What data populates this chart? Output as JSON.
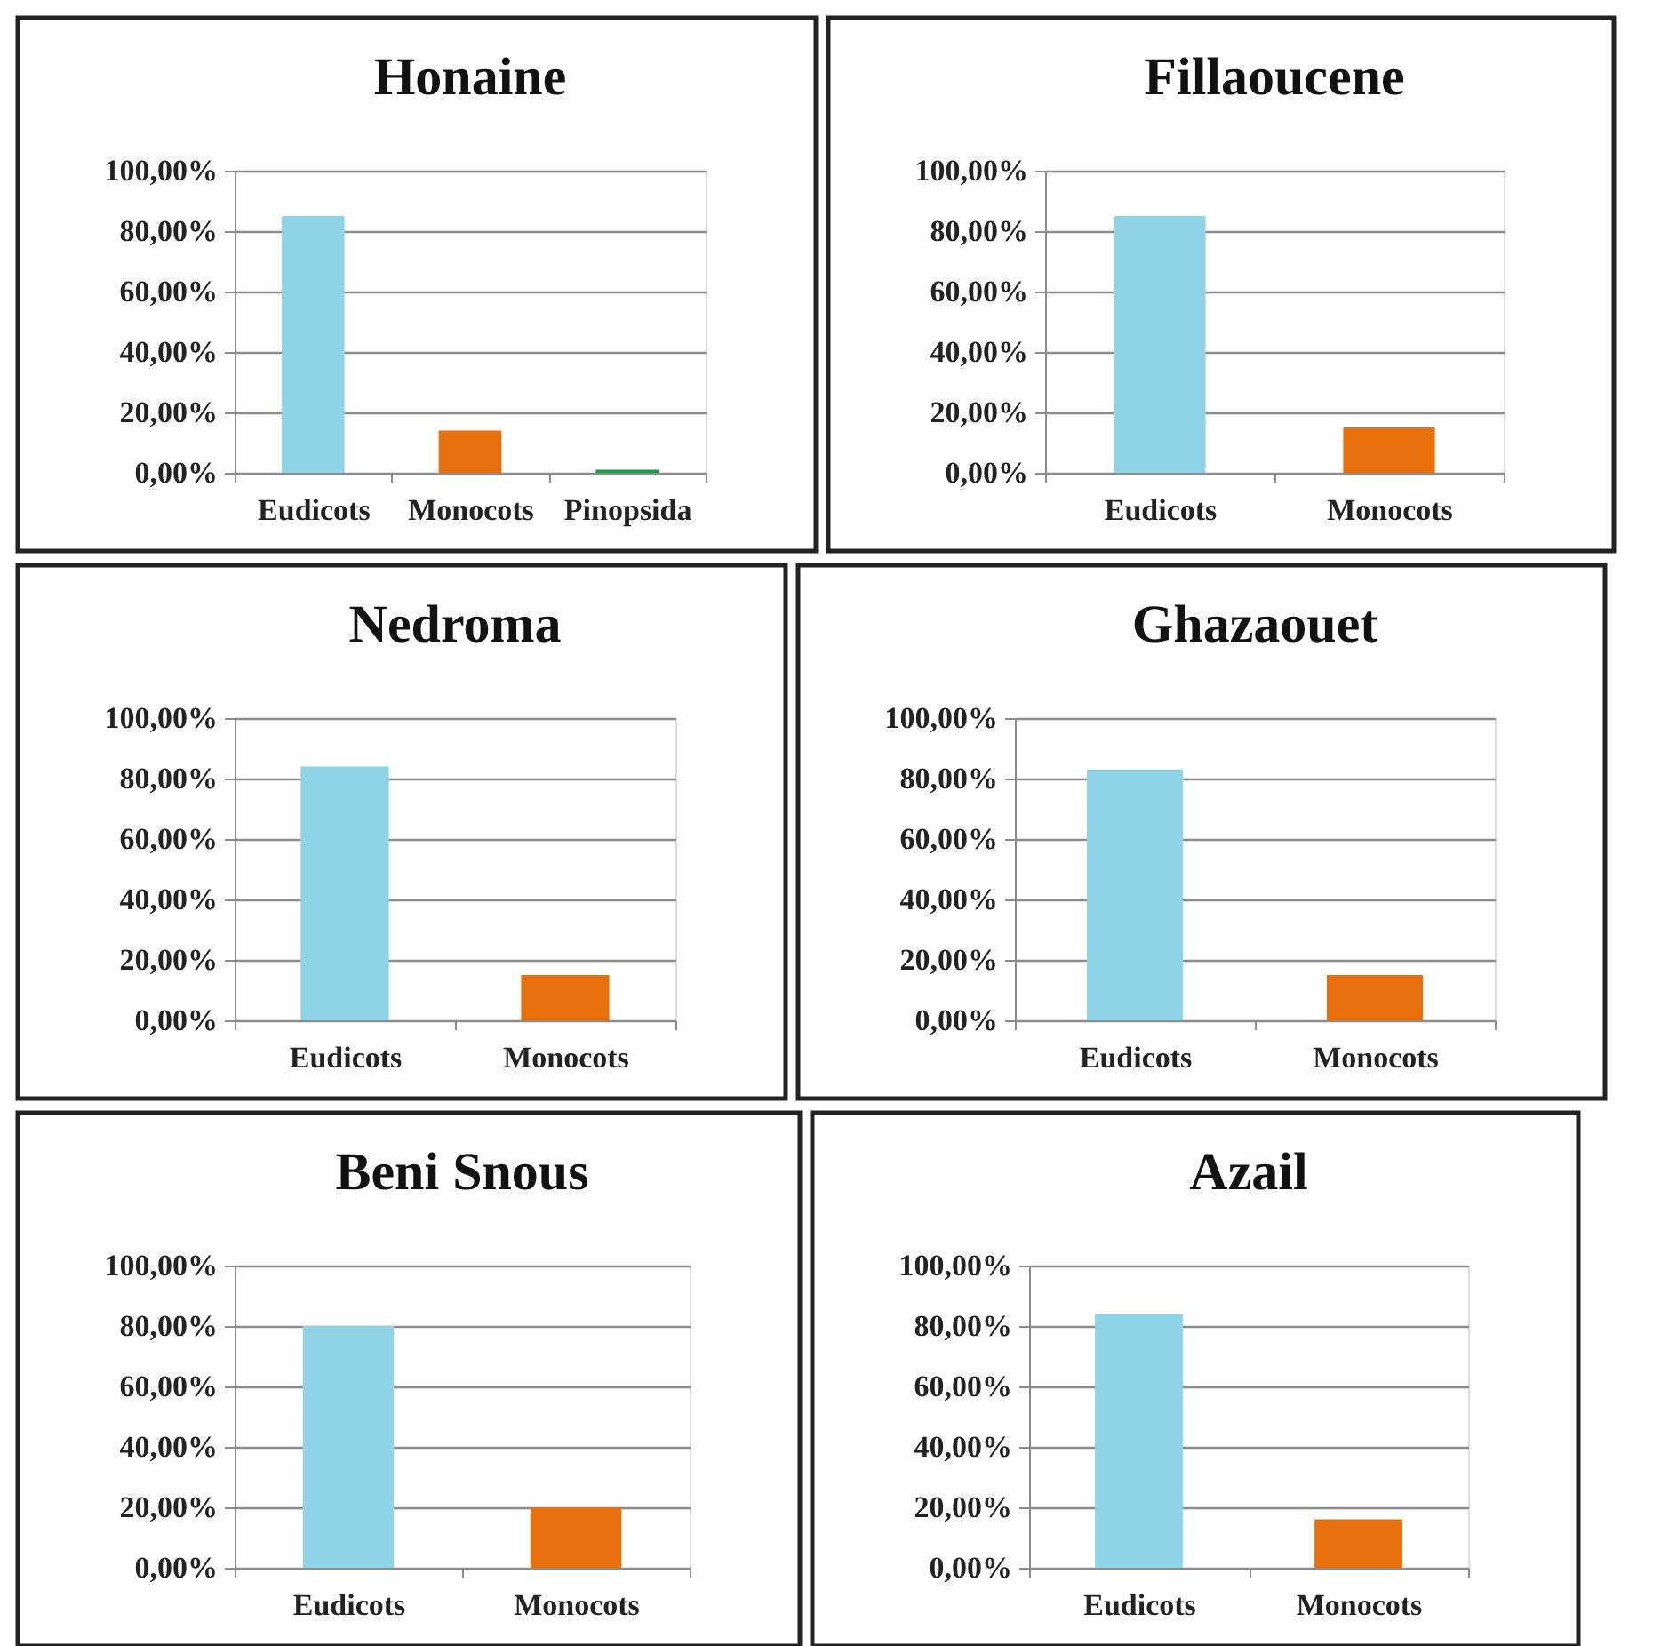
{
  "chart_data": [
    {
      "type": "bar",
      "title": "Honaine",
      "categories": [
        "Eudicots",
        "Monocots",
        "Pinopsida"
      ],
      "values": [
        85,
        14,
        1
      ],
      "colors": [
        "#8ed3e6",
        "#e8700c",
        "#14a044"
      ],
      "ylim": [
        0,
        100
      ],
      "yticks": [
        {
          "value": 0,
          "label": "0,00%"
        },
        {
          "value": 20,
          "label": "20,00%"
        },
        {
          "value": 40,
          "label": "40,00%"
        },
        {
          "value": 60,
          "label": "60,00%"
        },
        {
          "value": 80,
          "label": "80,00%"
        },
        {
          "value": 100,
          "label": "100,00%"
        }
      ],
      "grid": "y"
    },
    {
      "type": "bar",
      "title": "Fillaoucene",
      "categories": [
        "Eudicots",
        "Monocots"
      ],
      "values": [
        85,
        15
      ],
      "colors": [
        "#8ed3e6",
        "#e8700c"
      ],
      "ylim": [
        0,
        100
      ],
      "yticks": [
        {
          "value": 0,
          "label": "0,00%"
        },
        {
          "value": 20,
          "label": "20,00%"
        },
        {
          "value": 40,
          "label": "40,00%"
        },
        {
          "value": 60,
          "label": "60,00%"
        },
        {
          "value": 80,
          "label": "80,00%"
        },
        {
          "value": 100,
          "label": "100,00%"
        }
      ],
      "grid": "y"
    },
    {
      "type": "bar",
      "title": "Nedroma",
      "categories": [
        "Eudicots",
        "Monocots"
      ],
      "values": [
        84,
        15
      ],
      "colors": [
        "#8ed3e6",
        "#e8700c"
      ],
      "ylim": [
        0,
        100
      ],
      "yticks": [
        {
          "value": 0,
          "label": "0,00%"
        },
        {
          "value": 20,
          "label": "20,00%"
        },
        {
          "value": 40,
          "label": "40,00%"
        },
        {
          "value": 60,
          "label": "60,00%"
        },
        {
          "value": 80,
          "label": "80,00%"
        },
        {
          "value": 100,
          "label": "100,00%"
        }
      ],
      "grid": "y"
    },
    {
      "type": "bar",
      "title": "Ghazaouet",
      "categories": [
        "Eudicots",
        "Monocots"
      ],
      "values": [
        83,
        15
      ],
      "colors": [
        "#8ed3e6",
        "#e8700c"
      ],
      "ylim": [
        0,
        100
      ],
      "yticks": [
        {
          "value": 0,
          "label": "0,00%"
        },
        {
          "value": 20,
          "label": "20,00%"
        },
        {
          "value": 40,
          "label": "40,00%"
        },
        {
          "value": 60,
          "label": "60,00%"
        },
        {
          "value": 80,
          "label": "80,00%"
        },
        {
          "value": 100,
          "label": "100,00%"
        }
      ],
      "grid": "y"
    },
    {
      "type": "bar",
      "title": "Beni Snous",
      "categories": [
        "Eudicots",
        "Monocots"
      ],
      "values": [
        80,
        20
      ],
      "colors": [
        "#8ed3e6",
        "#e8700c"
      ],
      "ylim": [
        0,
        100
      ],
      "yticks": [
        {
          "value": 0,
          "label": "0,00%"
        },
        {
          "value": 20,
          "label": "20,00%"
        },
        {
          "value": 40,
          "label": "40,00%"
        },
        {
          "value": 60,
          "label": "60,00%"
        },
        {
          "value": 80,
          "label": "80,00%"
        },
        {
          "value": 100,
          "label": "100,00%"
        }
      ],
      "grid": "y"
    },
    {
      "type": "bar",
      "title": "Azail",
      "categories": [
        "Eudicots",
        "Monocots"
      ],
      "values": [
        84,
        16
      ],
      "colors": [
        "#8ed3e6",
        "#e8700c"
      ],
      "ylim": [
        0,
        100
      ],
      "yticks": [
        {
          "value": 0,
          "label": "0,00%"
        },
        {
          "value": 20,
          "label": "20,00%"
        },
        {
          "value": 40,
          "label": "40,00%"
        },
        {
          "value": 60,
          "label": "60,00%"
        },
        {
          "value": 80,
          "label": "80,00%"
        },
        {
          "value": 100,
          "label": "100,00%"
        }
      ],
      "grid": "y"
    }
  ]
}
